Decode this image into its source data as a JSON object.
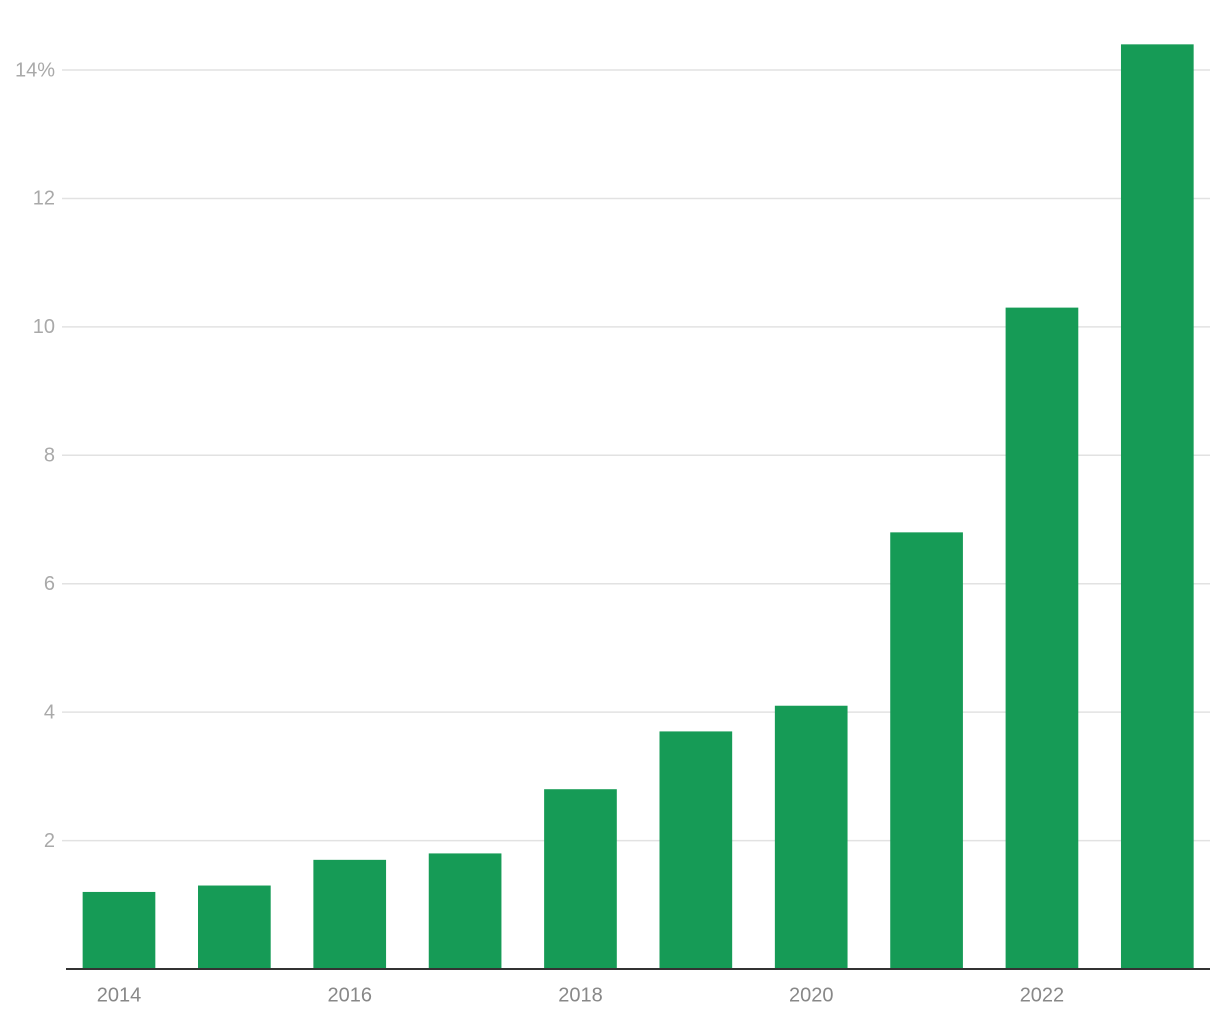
{
  "chart_data": {
    "type": "bar",
    "categories": [
      "2014",
      null,
      "2016",
      null,
      "2018",
      null,
      "2020",
      null,
      "2022",
      null
    ],
    "values": [
      1.2,
      1.3,
      1.7,
      1.8,
      2.8,
      3.7,
      4.1,
      6.8,
      10.3,
      14.4
    ],
    "color": "#169b56",
    "ylim": [
      0,
      14.6
    ],
    "yticks": [
      2,
      4,
      6,
      8,
      10,
      12,
      {
        "value": 14,
        "label": "14%"
      }
    ],
    "grid": true
  }
}
